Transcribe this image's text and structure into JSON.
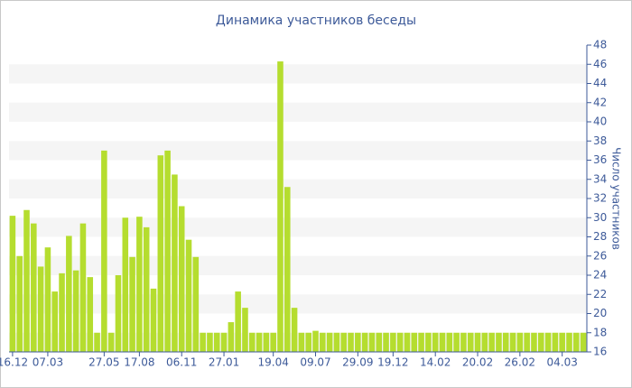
{
  "chart_data": {
    "type": "bar",
    "title": "Динамика участников беседы",
    "y_axis_label": "Число участников",
    "categories": [
      "16.12",
      null,
      null,
      null,
      null,
      "07.03",
      null,
      null,
      null,
      null,
      null,
      null,
      null,
      "27.05",
      null,
      null,
      null,
      null,
      "17.08",
      null,
      null,
      null,
      null,
      null,
      "06.11",
      null,
      null,
      null,
      null,
      null,
      "27.01",
      null,
      null,
      null,
      null,
      null,
      null,
      "19.04",
      null,
      null,
      null,
      null,
      null,
      "09.07",
      null,
      null,
      null,
      null,
      null,
      "29.09",
      null,
      null,
      null,
      null,
      "19.12",
      null,
      null,
      null,
      null,
      null,
      "14.02",
      null,
      null,
      null,
      null,
      null,
      "20.02",
      null,
      null,
      null,
      null,
      null,
      "26.02",
      null,
      null,
      null,
      null,
      null,
      "04.03",
      null,
      null,
      null
    ],
    "values": [
      30.2,
      26,
      30.8,
      29.4,
      24.9,
      26.9,
      22.3,
      24.2,
      28.1,
      24.5,
      29.4,
      23.8,
      18,
      37,
      18,
      24,
      30,
      25.9,
      30.1,
      29,
      22.6,
      36.5,
      37,
      34.5,
      31.2,
      27.7,
      25.9,
      18,
      18,
      18,
      18,
      19.1,
      22.3,
      20.6,
      18,
      18,
      18,
      18,
      46.3,
      33.2,
      20.6,
      18,
      18,
      18.2,
      18,
      18,
      18,
      18,
      18,
      18,
      18,
      18,
      18,
      18,
      18,
      18,
      18,
      18,
      18,
      18,
      18,
      18,
      18,
      18,
      18,
      18,
      18,
      18,
      18,
      18,
      18,
      18,
      18,
      18,
      18,
      18,
      18,
      18,
      18,
      18,
      18,
      18
    ],
    "color": "#b5dd2f",
    "ylim": [
      16,
      48
    ],
    "yticks": [
      16,
      18,
      20,
      22,
      24,
      26,
      28,
      30,
      32,
      34,
      36,
      38,
      40,
      42,
      44,
      46,
      48
    ],
    "grid": true,
    "y_axis_side": "right"
  }
}
